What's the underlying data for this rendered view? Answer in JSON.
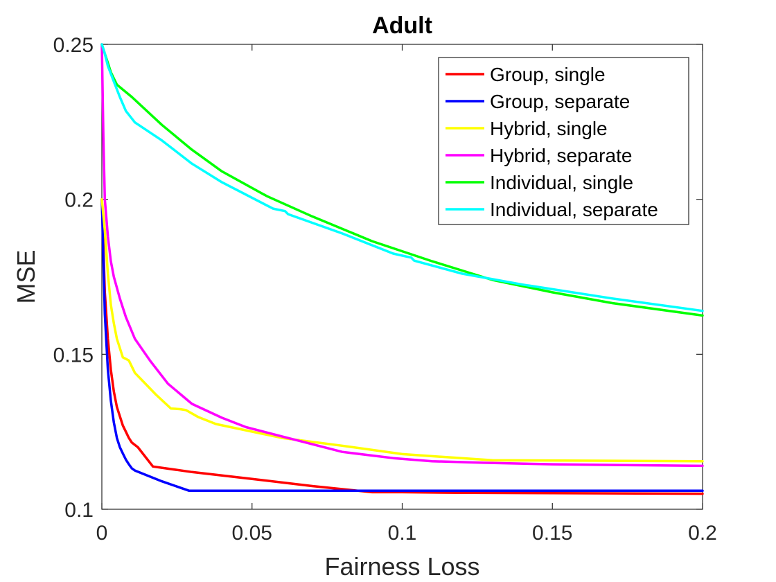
{
  "chart_data": {
    "type": "line",
    "title": "Adult",
    "xlabel": "Fairness Loss",
    "ylabel": "MSE",
    "xlim": [
      0,
      0.2
    ],
    "ylim": [
      0.1,
      0.25
    ],
    "xticks": [
      0,
      0.05,
      0.1,
      0.15,
      0.2
    ],
    "xtick_labels": [
      "0",
      "0.05",
      "0.1",
      "0.15",
      "0.2"
    ],
    "yticks": [
      0.1,
      0.15,
      0.2,
      0.25
    ],
    "ytick_labels": [
      "0.1",
      "0.15",
      "0.2",
      "0.25"
    ],
    "grid": false,
    "legend_position": "top-right",
    "series": [
      {
        "name": "Group, single",
        "color": "#ff0000",
        "x": [
          0,
          0.001,
          0.002,
          0.003,
          0.004,
          0.005,
          0.006,
          0.007,
          0.008,
          0.009,
          0.01,
          0.012,
          0.017,
          0.03,
          0.05,
          0.07,
          0.09,
          0.1,
          0.12,
          0.15,
          0.2
        ],
        "y": [
          0.2,
          0.17,
          0.155,
          0.145,
          0.138,
          0.133,
          0.13,
          0.127,
          0.125,
          0.123,
          0.1215,
          0.12,
          0.1138,
          0.112,
          0.1098,
          0.1075,
          0.1055,
          0.1055,
          0.1053,
          0.1052,
          0.105
        ]
      },
      {
        "name": "Group, separate",
        "color": "#0000ff",
        "x": [
          0,
          0.001,
          0.002,
          0.003,
          0.004,
          0.005,
          0.006,
          0.007,
          0.008,
          0.009,
          0.01,
          0.011,
          0.02,
          0.029,
          0.05,
          0.085,
          0.1,
          0.15,
          0.2
        ],
        "y": [
          0.2,
          0.163,
          0.145,
          0.135,
          0.128,
          0.123,
          0.12,
          0.118,
          0.116,
          0.1145,
          0.1132,
          0.1125,
          0.109,
          0.106,
          0.106,
          0.106,
          0.106,
          0.106,
          0.106
        ]
      },
      {
        "name": "Hybrid, single",
        "color": "#ffff00",
        "x": [
          0,
          0.001,
          0.002,
          0.003,
          0.004,
          0.005,
          0.007,
          0.008,
          0.009,
          0.011,
          0.013,
          0.018,
          0.023,
          0.026,
          0.028,
          0.032,
          0.038,
          0.06,
          0.08,
          0.1,
          0.13,
          0.2
        ],
        "y": [
          0.2,
          0.19,
          0.176,
          0.166,
          0.16,
          0.155,
          0.149,
          0.1485,
          0.148,
          0.144,
          0.142,
          0.137,
          0.1325,
          0.1323,
          0.132,
          0.1298,
          0.1275,
          0.123,
          0.1205,
          0.1178,
          0.1158,
          0.1155
        ]
      },
      {
        "name": "Hybrid, separate",
        "color": "#ff00ff",
        "x": [
          0,
          0.0005,
          0.001,
          0.002,
          0.003,
          0.004,
          0.006,
          0.008,
          0.011,
          0.016,
          0.022,
          0.03,
          0.04,
          0.048,
          0.06,
          0.08,
          0.097,
          0.11,
          0.127,
          0.15,
          0.2
        ],
        "y": [
          0.25,
          0.22,
          0.2,
          0.188,
          0.18,
          0.175,
          0.168,
          0.162,
          0.155,
          0.148,
          0.1405,
          0.134,
          0.1295,
          0.1265,
          0.1235,
          0.1185,
          0.1165,
          0.1155,
          0.115,
          0.1145,
          0.114
        ]
      },
      {
        "name": "Individual, single",
        "color": "#00ff00",
        "x": [
          0,
          0.001,
          0.002,
          0.003,
          0.004,
          0.005,
          0.01,
          0.02,
          0.03,
          0.04,
          0.055,
          0.07,
          0.09,
          0.11,
          0.13,
          0.15,
          0.17,
          0.2
        ],
        "y": [
          0.25,
          0.247,
          0.244,
          0.241,
          0.239,
          0.237,
          0.233,
          0.224,
          0.216,
          0.209,
          0.201,
          0.1945,
          0.1865,
          0.18,
          0.174,
          0.17,
          0.1665,
          0.1625
        ]
      },
      {
        "name": "Individual, separate",
        "color": "#00ffff",
        "x": [
          0,
          0.001,
          0.002,
          0.004,
          0.006,
          0.008,
          0.011,
          0.02,
          0.03,
          0.04,
          0.057,
          0.061,
          0.062,
          0.08,
          0.097,
          0.103,
          0.104,
          0.12,
          0.14,
          0.17,
          0.2
        ],
        "y": [
          0.25,
          0.247,
          0.243,
          0.238,
          0.233,
          0.2285,
          0.2248,
          0.219,
          0.2115,
          0.2055,
          0.197,
          0.1962,
          0.1952,
          0.189,
          0.1825,
          0.1812,
          0.1802,
          0.176,
          0.1725,
          0.168,
          0.164
        ]
      }
    ]
  }
}
